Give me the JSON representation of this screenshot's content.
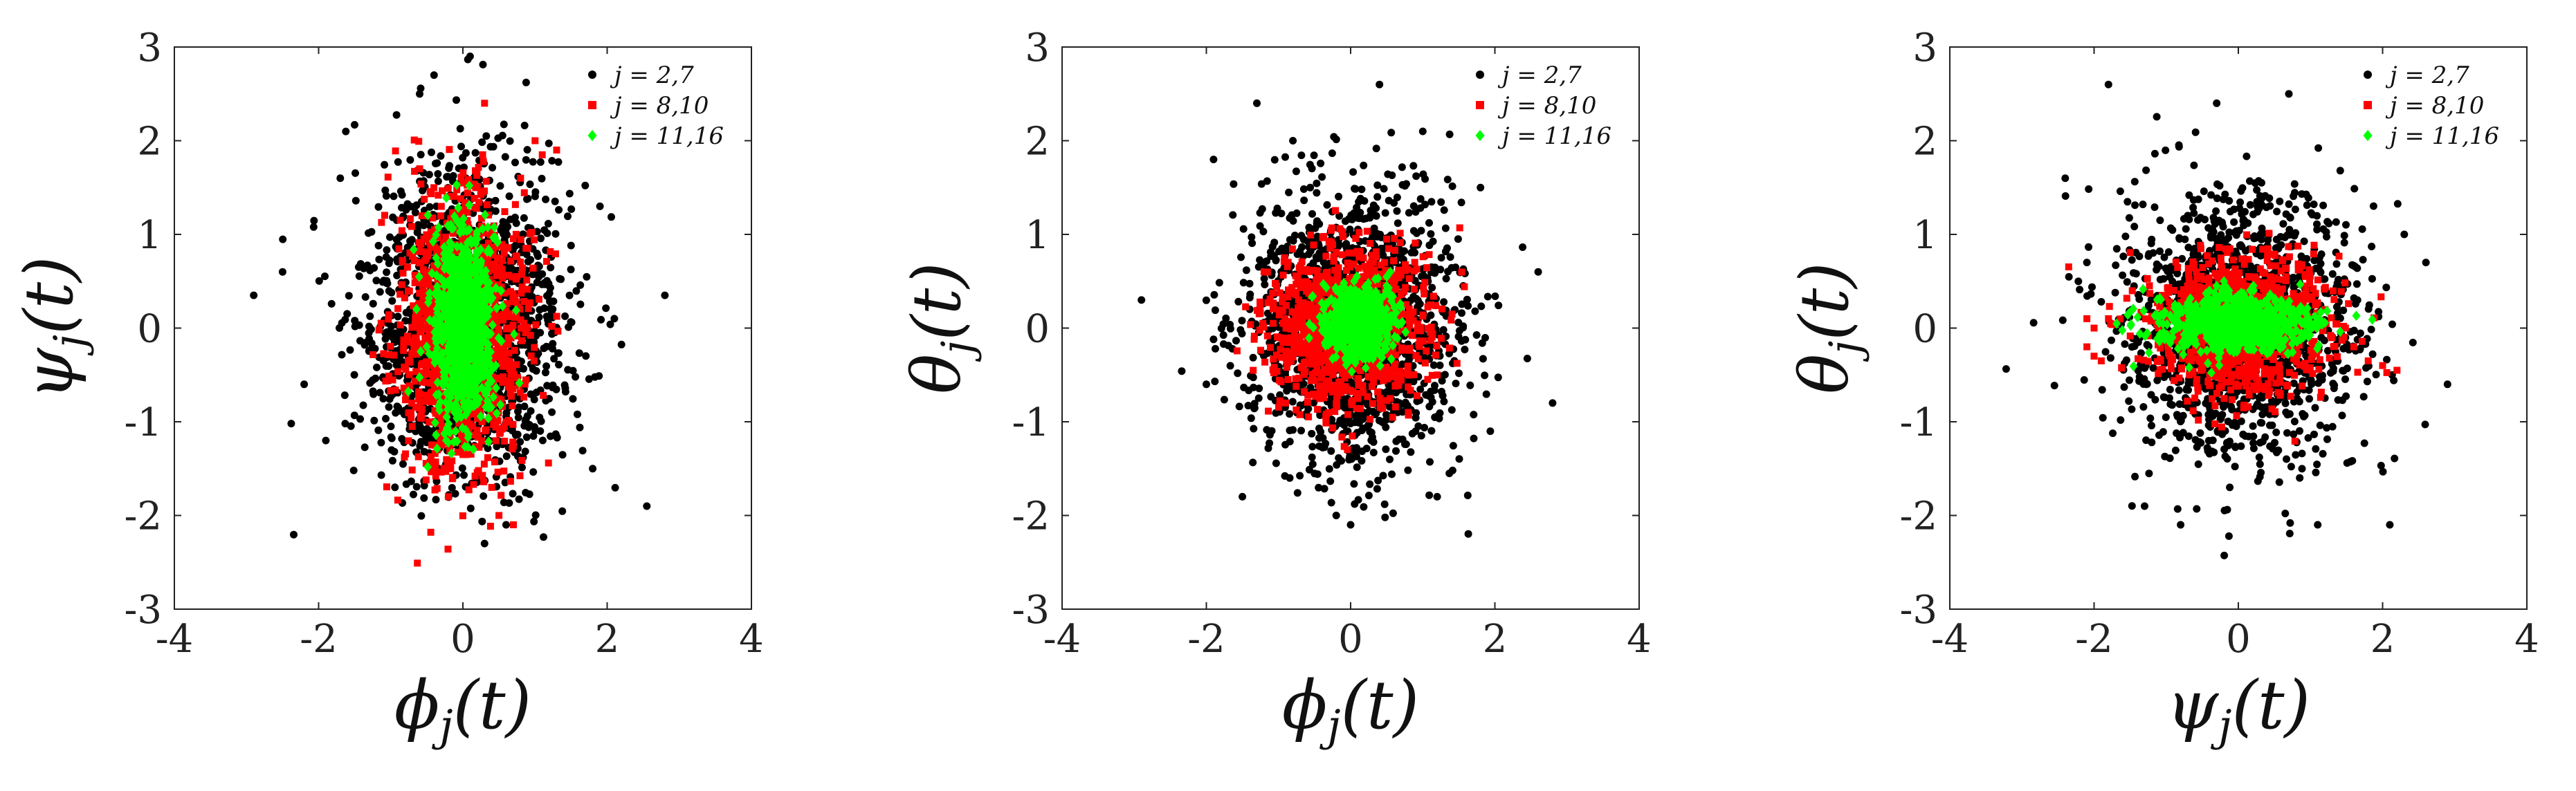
{
  "chart_data": [
    {
      "type": "scatter",
      "xlabel": "ϕj(t)",
      "ylabel": "ψj(t)",
      "xlim": [
        -4,
        4
      ],
      "ylim": [
        -3,
        3
      ],
      "xticks": [
        -4,
        -2,
        0,
        2,
        4
      ],
      "yticks": [
        -3,
        -2,
        -1,
        0,
        1,
        2,
        3
      ],
      "legend_position": "top-right",
      "series": [
        {
          "name": "j = 2,7",
          "marker": "circle",
          "color": "#000000",
          "cloud": {
            "mean": [
              0.0,
              0.0
            ],
            "std": [
              0.72,
              0.82
            ],
            "count": 1600
          },
          "points": [
            [
              -2.9,
              0.35
            ],
            [
              -2.5,
              0.6
            ],
            [
              2.8,
              0.35
            ],
            [
              2.55,
              -1.9
            ],
            [
              -0.4,
              2.7
            ],
            [
              0.1,
              2.9
            ],
            [
              0.3,
              -2.3
            ],
            [
              -1.7,
              1.6
            ],
            [
              1.9,
              1.3
            ],
            [
              1.8,
              -1.5
            ],
            [
              -1.9,
              -1.2
            ],
            [
              2.1,
              0.1
            ],
            [
              -2.2,
              -0.6
            ],
            [
              -0.6,
              2.5
            ],
            [
              0.6,
              -2.1
            ]
          ]
        },
        {
          "name": "j = 8,10",
          "marker": "square",
          "color": "#ff0000",
          "cloud": {
            "mean": [
              0.0,
              0.0
            ],
            "std": [
              0.42,
              0.72
            ],
            "count": 1300
          },
          "points": [
            [
              0.3,
              2.4
            ],
            [
              1.0,
              2.0
            ],
            [
              1.3,
              1.9
            ],
            [
              0.5,
              -2.0
            ],
            [
              0.7,
              -2.1
            ],
            [
              -0.6,
              1.7
            ],
            [
              0.8,
              1.6
            ],
            [
              -0.2,
              -1.8
            ],
            [
              0.4,
              -1.7
            ],
            [
              1.1,
              1.85
            ]
          ]
        },
        {
          "name": "j = 11,16",
          "marker": "diamond",
          "color": "#00ff00",
          "cloud": {
            "mean": [
              0.0,
              0.0
            ],
            "std": [
              0.22,
              0.52
            ],
            "count": 900
          },
          "points": [
            [
              0.0,
              1.1
            ],
            [
              -0.1,
              -1.1
            ],
            [
              0.2,
              0.95
            ],
            [
              -0.3,
              0.0
            ],
            [
              0.35,
              -0.6
            ]
          ]
        }
      ]
    },
    {
      "type": "scatter",
      "xlabel": "ϕj(t)",
      "ylabel": "θj(t)",
      "xlim": [
        -4,
        4
      ],
      "ylim": [
        -3,
        3
      ],
      "xticks": [
        -4,
        -2,
        0,
        2,
        4
      ],
      "yticks": [
        -3,
        -2,
        -1,
        0,
        1,
        2,
        3
      ],
      "legend_position": "top-right",
      "series": [
        {
          "name": "j = 2,7",
          "marker": "circle",
          "color": "#000000",
          "cloud": {
            "mean": [
              0.0,
              0.0
            ],
            "std": [
              0.72,
              0.72
            ],
            "count": 1600
          },
          "points": [
            [
              -2.9,
              0.3
            ],
            [
              2.8,
              -0.8
            ],
            [
              2.6,
              0.6
            ],
            [
              -2.0,
              -0.6
            ],
            [
              -1.9,
              1.8
            ],
            [
              0.4,
              2.6
            ],
            [
              -1.3,
              2.4
            ],
            [
              0.0,
              -2.1
            ],
            [
              -0.2,
              -2.0
            ],
            [
              1.2,
              -1.8
            ],
            [
              -1.5,
              -1.8
            ],
            [
              1.8,
              1.5
            ],
            [
              -0.8,
              2.0
            ],
            [
              1.0,
              2.1
            ]
          ]
        },
        {
          "name": "j = 8,10",
          "marker": "square",
          "color": "#ff0000",
          "cloud": {
            "mean": [
              0.0,
              0.0
            ],
            "std": [
              0.52,
              0.42
            ],
            "count": 1100
          },
          "points": [
            [
              -1.2,
              0.6
            ],
            [
              1.2,
              -0.5
            ],
            [
              0.8,
              -0.9
            ],
            [
              -0.9,
              -0.8
            ],
            [
              0.5,
              0.95
            ]
          ]
        },
        {
          "name": "j = 11,16",
          "marker": "diamond",
          "color": "#00ff00",
          "cloud": {
            "mean": [
              0.1,
              0.05
            ],
            "std": [
              0.22,
              0.18
            ],
            "count": 700
          },
          "points": [
            [
              0.5,
              0.45
            ],
            [
              0.55,
              0.6
            ],
            [
              -0.4,
              0.05
            ],
            [
              0.3,
              -0.3
            ]
          ]
        }
      ]
    },
    {
      "type": "scatter",
      "xlabel": "ψj(t)",
      "ylabel": "θj(t)",
      "xlim": [
        -4,
        4
      ],
      "ylim": [
        -3,
        3
      ],
      "xticks": [
        -4,
        -2,
        0,
        2,
        4
      ],
      "yticks": [
        -3,
        -2,
        -1,
        0,
        1,
        2,
        3
      ],
      "legend_position": "top-right",
      "series": [
        {
          "name": "j = 2,7",
          "marker": "circle",
          "color": "#000000",
          "cloud": {
            "mean": [
              0.0,
              0.0
            ],
            "std": [
              0.8,
              0.68
            ],
            "count": 1600
          },
          "points": [
            [
              -1.8,
              2.6
            ],
            [
              -2.4,
              1.6
            ],
            [
              2.9,
              -0.6
            ],
            [
              2.1,
              -2.1
            ],
            [
              1.1,
              -2.1
            ],
            [
              -0.8,
              -2.1
            ],
            [
              -1.3,
              -1.9
            ],
            [
              0.7,
              2.5
            ],
            [
              -0.3,
              2.4
            ],
            [
              2.6,
              0.7
            ],
            [
              2.3,
              1.0
            ],
            [
              -2.1,
              0.7
            ]
          ]
        },
        {
          "name": "j = 8,10",
          "marker": "square",
          "color": "#ff0000",
          "cloud": {
            "mean": [
              0.0,
              0.0
            ],
            "std": [
              0.6,
              0.36
            ],
            "count": 1100
          },
          "points": [
            [
              -2.1,
              -0.2
            ],
            [
              -2.0,
              0.0
            ],
            [
              -2.0,
              -0.3
            ],
            [
              -1.9,
              -0.35
            ],
            [
              -1.8,
              0.1
            ],
            [
              -2.1,
              0.1
            ],
            [
              2.0,
              -0.4
            ],
            [
              2.2,
              -0.45
            ],
            [
              1.8,
              -0.35
            ],
            [
              1.6,
              -0.2
            ]
          ]
        },
        {
          "name": "j = 11,16",
          "marker": "diamond",
          "color": "#00ff00",
          "cloud": {
            "mean": [
              0.0,
              0.05
            ],
            "std": [
              0.5,
              0.15
            ],
            "count": 800
          },
          "points": [
            [
              -0.3,
              0.45
            ],
            [
              -0.2,
              0.5
            ],
            [
              -0.4,
              0.4
            ],
            [
              0.9,
              -0.1
            ],
            [
              -0.9,
              0.1
            ]
          ]
        }
      ]
    }
  ]
}
